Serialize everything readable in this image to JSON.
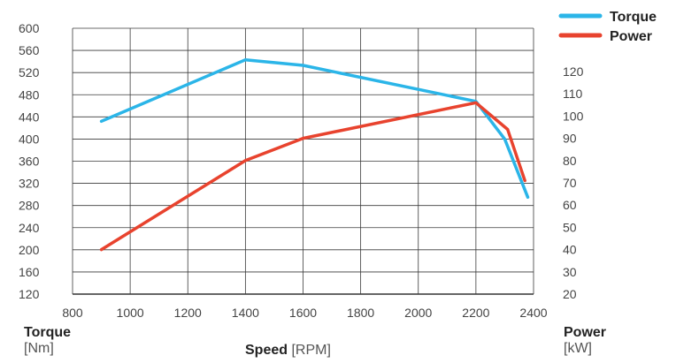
{
  "chart_data": {
    "type": "line",
    "title": "",
    "x_axis": {
      "label": "Speed",
      "unit": "[RPM]",
      "range": [
        800,
        2400
      ],
      "ticks": [
        "800",
        "1000",
        "1200",
        "1400",
        "1600",
        "1800",
        "2000",
        "2200",
        "2400"
      ]
    },
    "y_left_axis": {
      "label": "Torque",
      "unit": "[Nm]",
      "range": [
        120,
        600
      ],
      "ticks": [
        "120",
        "160",
        "200",
        "240",
        "280",
        "320",
        "360",
        "400",
        "440",
        "480",
        "520",
        "560",
        "600"
      ]
    },
    "y_right_axis": {
      "label": "Power",
      "unit": "[kW]",
      "range": [
        20,
        120
      ],
      "ticks": [
        "20",
        "30",
        "40",
        "50",
        "60",
        "70",
        "80",
        "90",
        "100",
        "110",
        "120"
      ]
    },
    "grid": true,
    "legend_position": "top-right",
    "series": [
      {
        "name": "Torque",
        "axis": "left",
        "color": "#2bb5e8",
        "points": [
          [
            900,
            432
          ],
          [
            1400,
            543
          ],
          [
            1600,
            533
          ],
          [
            2200,
            468
          ],
          [
            2300,
            400
          ],
          [
            2380,
            295
          ]
        ]
      },
      {
        "name": "Power",
        "axis": "right",
        "color": "#e8432e",
        "points": [
          [
            900,
            40
          ],
          [
            1400,
            80
          ],
          [
            1600,
            90
          ],
          [
            2200,
            106
          ],
          [
            2310,
            94
          ],
          [
            2370,
            71
          ]
        ]
      }
    ]
  }
}
